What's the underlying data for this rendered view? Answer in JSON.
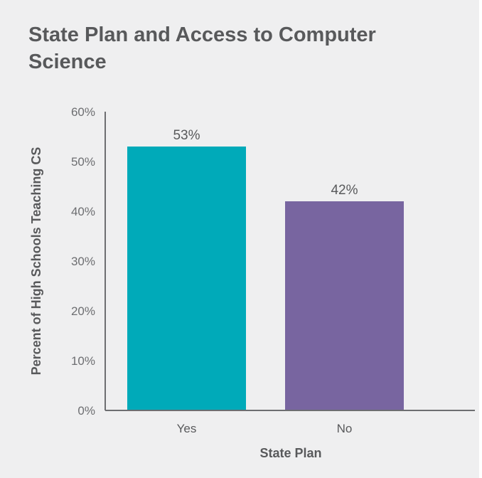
{
  "chart_data": {
    "type": "bar",
    "title": "State Plan and Access to Computer Science",
    "xlabel": "State Plan",
    "ylabel": "Percent of High Schools Teaching CS",
    "categories": [
      "Yes",
      "No"
    ],
    "values": [
      53,
      42
    ],
    "data_labels": [
      "53%",
      "42%"
    ],
    "ylim": [
      0,
      60
    ],
    "yticks": [
      "0%",
      "10%",
      "20%",
      "30%",
      "40%",
      "50%",
      "60%"
    ],
    "grid": false,
    "colors": [
      "#00aab9",
      "#7865a0"
    ],
    "axis_color": "#6d6e71"
  }
}
